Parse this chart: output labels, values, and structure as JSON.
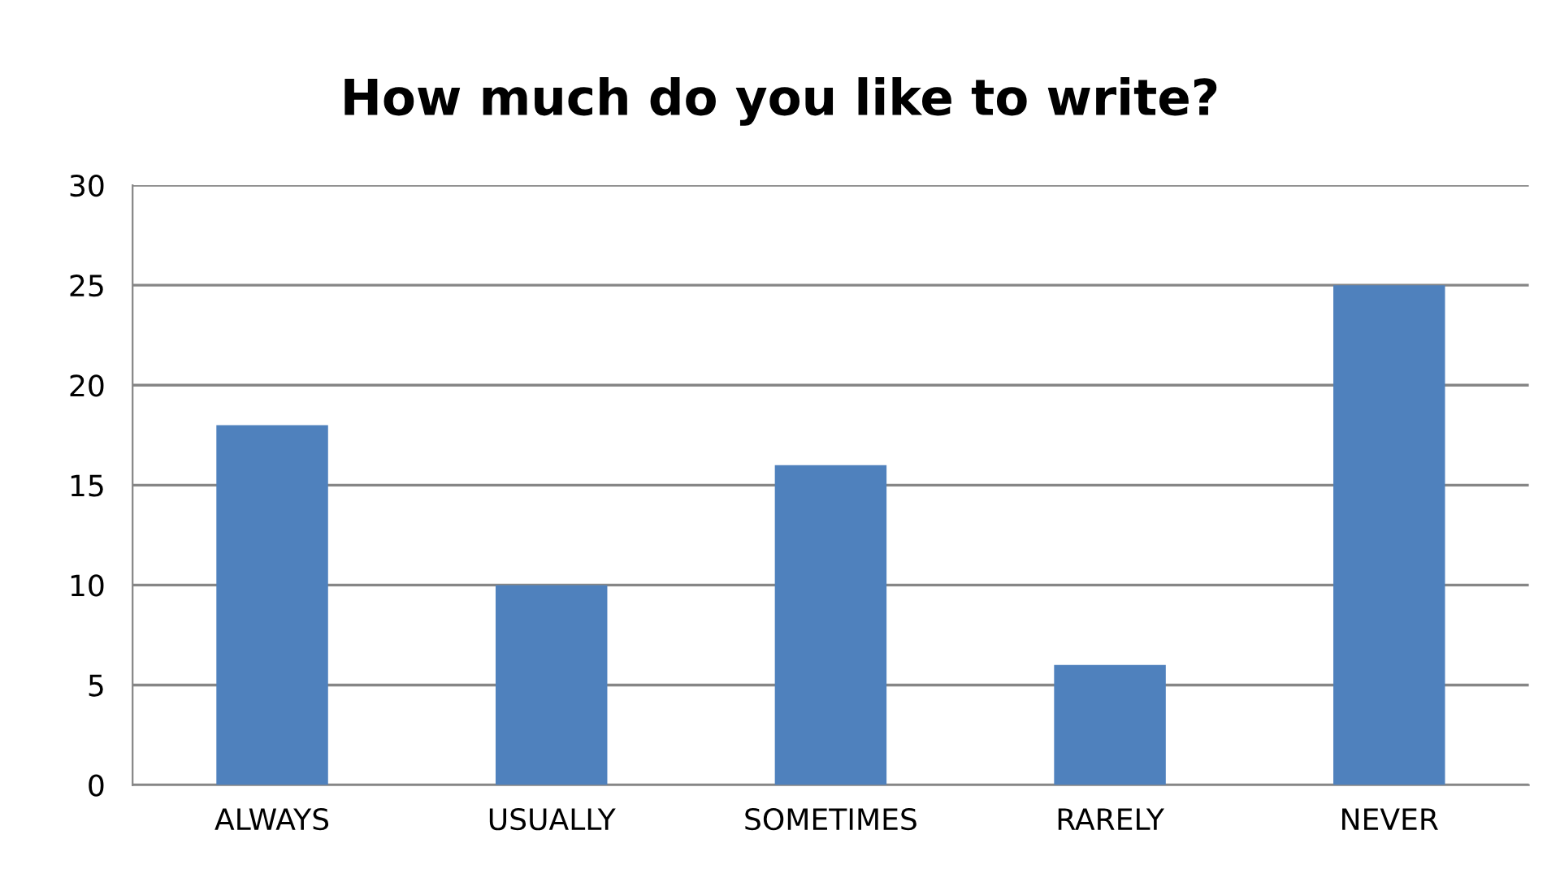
{
  "chart_data": {
    "type": "bar",
    "title": "How much do you like to write?",
    "categories": [
      "ALWAYS",
      "USUALLY",
      "SOMETIMES",
      "RARELY",
      "NEVER"
    ],
    "values": [
      18,
      10,
      16,
      6,
      25
    ],
    "color": "#4f81bd",
    "ylim": [
      0,
      30
    ],
    "yticks": [
      0,
      5,
      10,
      15,
      20,
      25,
      30
    ],
    "grid": "y",
    "legend": false
  }
}
